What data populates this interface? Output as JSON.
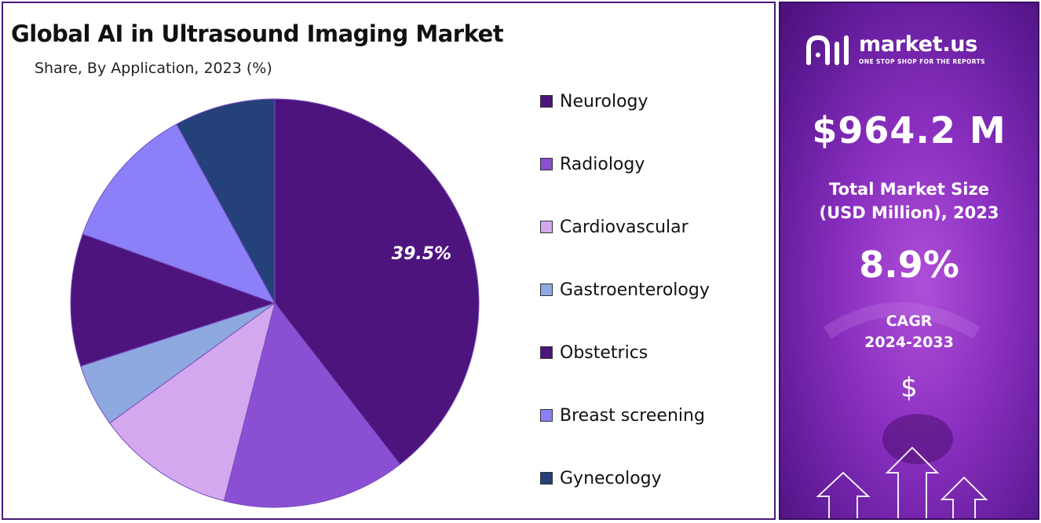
{
  "header": {
    "title": "Global AI in Ultrasound Imaging Market",
    "subtitle": "Share, By Application, 2023 (%)"
  },
  "chart_data": {
    "type": "pie",
    "title": "Global AI in Ultrasound Imaging Market",
    "subtitle": "Share, By Application, 2023 (%)",
    "legend_position": "right",
    "start_angle_deg": 0,
    "direction": "clockwise",
    "series": [
      {
        "name": "Neurology",
        "value": 39.5,
        "color": "#4e147e",
        "label": "39.5%"
      },
      {
        "name": "Radiology",
        "value": 14.5,
        "color": "#8a4fd2",
        "label": ""
      },
      {
        "name": "Cardiovascular",
        "value": 11.0,
        "color": "#d4a8ee",
        "label": ""
      },
      {
        "name": "Gastroenterology",
        "value": 5.0,
        "color": "#8ea8e0",
        "label": ""
      },
      {
        "name": "Obstetrics",
        "value": 10.5,
        "color": "#4e147e",
        "label": ""
      },
      {
        "name": "Breast screening",
        "value": 11.5,
        "color": "#8b80f8",
        "label": ""
      },
      {
        "name": "Gynecology",
        "value": 8.0,
        "color": "#24417a",
        "label": ""
      }
    ]
  },
  "sidebar": {
    "brand_name": "market.us",
    "brand_tagline": "ONE STOP SHOP FOR THE REPORTS",
    "market_size_value": "$964.2 M",
    "market_size_label_line1": "Total Market Size",
    "market_size_label_line2": "(USD Million), 2023",
    "cagr_value": "8.9%",
    "cagr_label_line1": "CAGR",
    "cagr_label_line2": "2024-2033",
    "currency_symbol": "$"
  }
}
